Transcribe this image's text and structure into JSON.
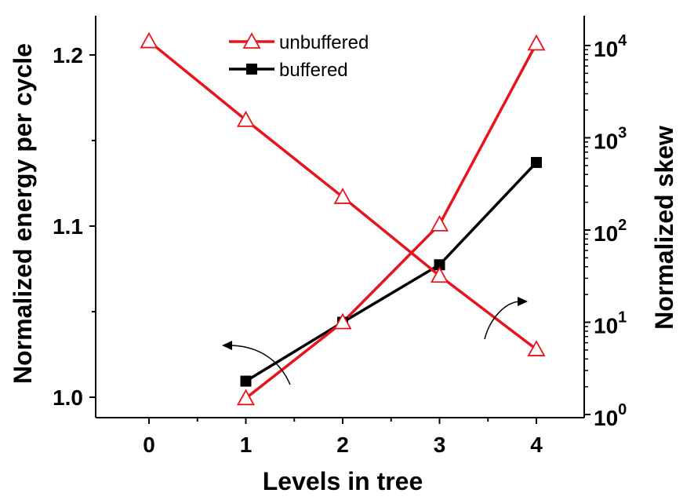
{
  "chart_data": {
    "type": "line",
    "xlabel": "Levels in tree",
    "ylabel_left": "Normalized energy per cycle",
    "ylabel_right": "Normalized skew",
    "x_ticks": [
      "0",
      "1",
      "2",
      "3",
      "4"
    ],
    "xlim": [
      -0.5,
      4.5
    ],
    "ylim_left": [
      0.99,
      1.22
    ],
    "y_ticks_left": [
      "1.0",
      "1.1",
      "1.2"
    ],
    "y_ticks_left_values": [
      1.0,
      1.1,
      1.2
    ],
    "ylim_right": [
      1,
      20000
    ],
    "y_scale_right": "log",
    "y_ticks_right": [
      {
        "base": "10",
        "exp": "0",
        "value": 1
      },
      {
        "base": "10",
        "exp": "1",
        "value": 10
      },
      {
        "base": "10",
        "exp": "2",
        "value": 100
      },
      {
        "base": "10",
        "exp": "3",
        "value": 1000
      },
      {
        "base": "10",
        "exp": "4",
        "value": 10000
      }
    ],
    "legend_position": "top-center",
    "series": [
      {
        "name": "unbuffered",
        "axis": "left",
        "color": "#e8141c",
        "marker": "triangle-open",
        "x": [
          0,
          1,
          2,
          3,
          4
        ],
        "y": [
          1.208,
          1.162,
          1.117,
          1.071,
          1.028
        ]
      },
      {
        "name": "",
        "axis": "right",
        "color": "#e8141c",
        "marker": "triangle-open",
        "x": [
          1,
          2,
          3,
          4
        ],
        "y": [
          1.5,
          10,
          115,
          10500
        ]
      },
      {
        "name": "buffered",
        "axis": "right",
        "color": "#000000",
        "marker": "square-filled",
        "x": [
          1,
          2,
          3,
          4
        ],
        "y": [
          2.3,
          10,
          42,
          540
        ]
      }
    ],
    "annotations": [
      {
        "type": "curved-arrow",
        "points_to": "left axis"
      },
      {
        "type": "curved-arrow",
        "points_to": "right axis"
      }
    ]
  }
}
